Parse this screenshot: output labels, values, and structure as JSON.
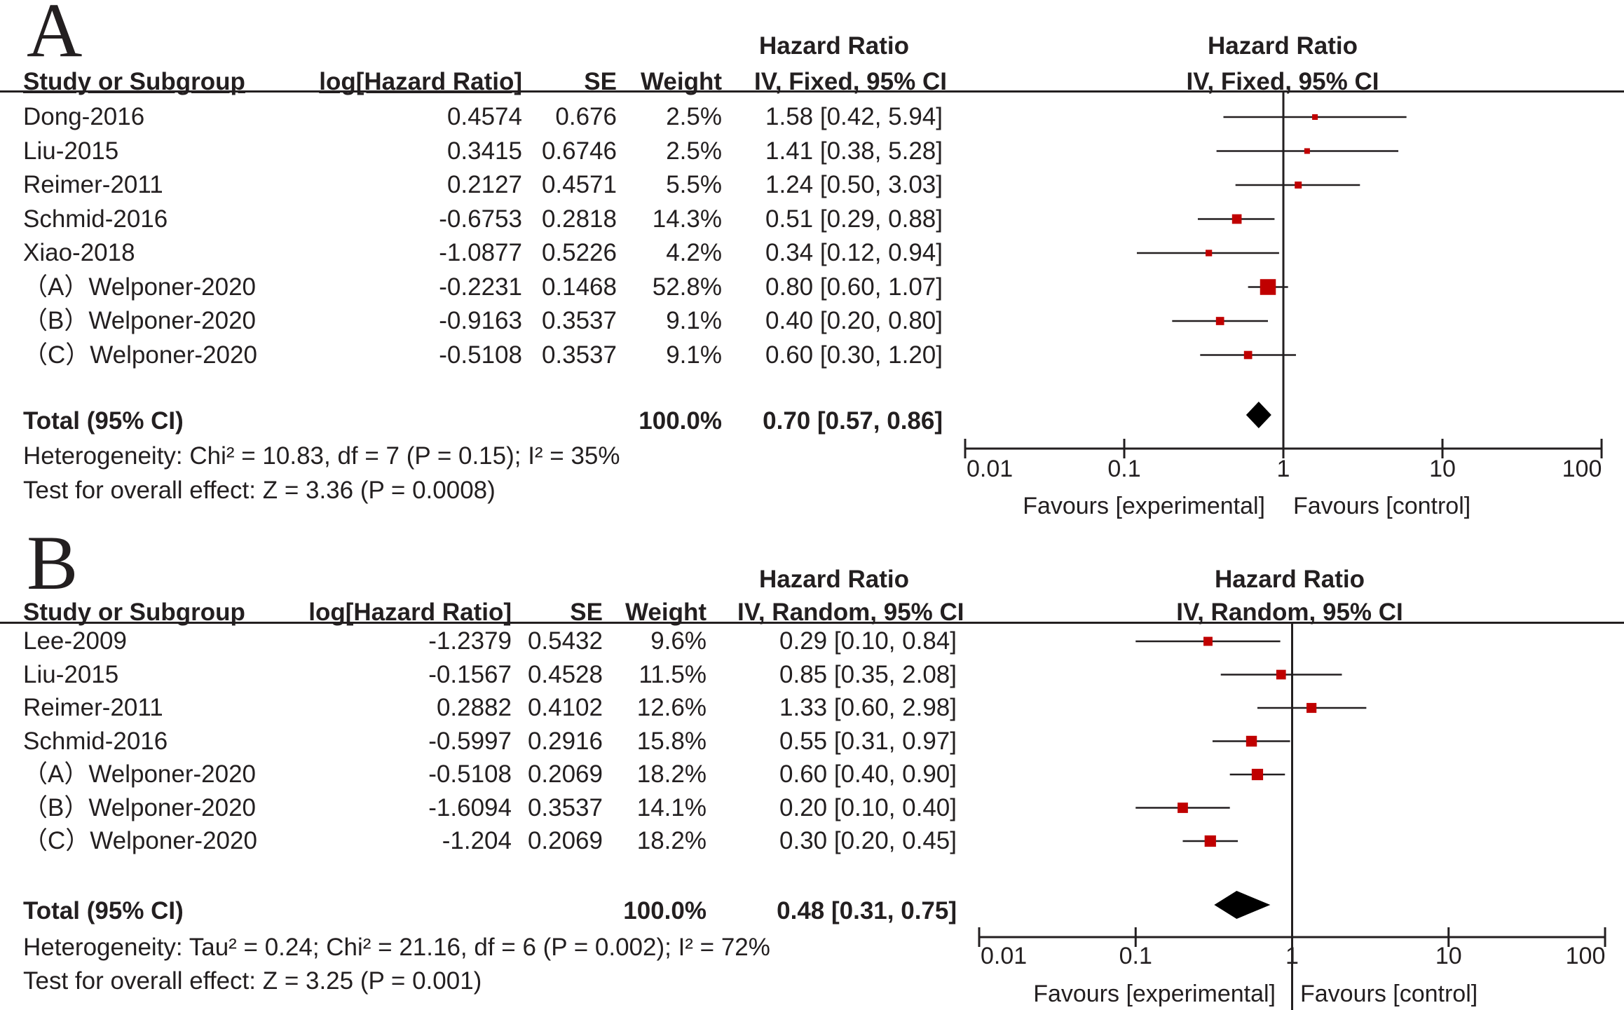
{
  "chart_data": [
    {
      "type": "forest",
      "panel_label": "A",
      "scale": "log",
      "xlim": [
        0.01,
        100
      ],
      "ticks": [
        "0.01",
        "0.1",
        "1",
        "10",
        "100"
      ],
      "tick_values": [
        0.01,
        0.1,
        1,
        10,
        100
      ],
      "headers": {
        "study": "Study or Subgroup",
        "loghr": "log[Hazard Ratio]",
        "se": "SE",
        "weight": "Weight",
        "hr_title": "Hazard Ratio",
        "hr_method": "IV, Fixed, 95% CI",
        "plot_title": "Hazard Ratio",
        "plot_method": "IV, Fixed, 95% CI"
      },
      "studies": [
        {
          "name": "Dong-2016",
          "loghr": "0.4574",
          "se": "0.676",
          "weight": "2.5%",
          "ci_text": "1.58 [0.42, 5.94]",
          "hr": 1.58,
          "lo": 0.42,
          "hi": 5.94,
          "w": 2.5
        },
        {
          "name": "Liu-2015",
          "loghr": "0.3415",
          "se": "0.6746",
          "weight": "2.5%",
          "ci_text": "1.41 [0.38, 5.28]",
          "hr": 1.41,
          "lo": 0.38,
          "hi": 5.28,
          "w": 2.5
        },
        {
          "name": "Reimer-2011",
          "loghr": "0.2127",
          "se": "0.4571",
          "weight": "5.5%",
          "ci_text": "1.24 [0.50, 3.03]",
          "hr": 1.24,
          "lo": 0.5,
          "hi": 3.03,
          "w": 5.5
        },
        {
          "name": "Schmid-2016",
          "loghr": "-0.6753",
          "se": "0.2818",
          "weight": "14.3%",
          "ci_text": "0.51 [0.29, 0.88]",
          "hr": 0.51,
          "lo": 0.29,
          "hi": 0.88,
          "w": 14.3
        },
        {
          "name": "Xiao-2018",
          "loghr": "-1.0877",
          "se": "0.5226",
          "weight": "4.2%",
          "ci_text": "0.34 [0.12, 0.94]",
          "hr": 0.34,
          "lo": 0.12,
          "hi": 0.94,
          "w": 4.2
        },
        {
          "name": "（A）Welponer-2020",
          "loghr": "-0.2231",
          "se": "0.1468",
          "weight": "52.8%",
          "ci_text": "0.80 [0.60, 1.07]",
          "hr": 0.8,
          "lo": 0.6,
          "hi": 1.07,
          "w": 52.8
        },
        {
          "name": "（B）Welponer-2020",
          "loghr": "-0.9163",
          "se": "0.3537",
          "weight": "9.1%",
          "ci_text": "0.40 [0.20, 0.80]",
          "hr": 0.4,
          "lo": 0.2,
          "hi": 0.8,
          "w": 9.1
        },
        {
          "name": "（C）Welponer-2020",
          "loghr": "-0.5108",
          "se": "0.3537",
          "weight": "9.1%",
          "ci_text": "0.60 [0.30, 1.20]",
          "hr": 0.6,
          "lo": 0.3,
          "hi": 1.2,
          "w": 9.1
        }
      ],
      "total": {
        "label": "Total (95% CI)",
        "weight": "100.0%",
        "ci_text": "0.70 [0.57, 0.86]",
        "hr": 0.7,
        "lo": 0.57,
        "hi": 0.86
      },
      "heterogeneity": "Heterogeneity: Chi² = 10.83, df = 7 (P = 0.15); I² = 35%",
      "overall_effect": "Test for overall effect: Z = 3.36 (P = 0.0008)",
      "favours_left": "Favours [experimental]",
      "favours_right": "Favours [control]",
      "colors": {
        "box": "#c00000",
        "diamond": "#000000",
        "line": "#231f20"
      }
    },
    {
      "type": "forest",
      "panel_label": "B",
      "scale": "log",
      "xlim": [
        0.01,
        100
      ],
      "ticks": [
        "0.01",
        "0.1",
        "1",
        "10",
        "100"
      ],
      "tick_values": [
        0.01,
        0.1,
        1,
        10,
        100
      ],
      "headers": {
        "study": "Study or Subgroup",
        "loghr": "log[Hazard Ratio]",
        "se": "SE",
        "weight": "Weight",
        "hr_title": "Hazard Ratio",
        "hr_method": "IV, Random, 95% CI",
        "plot_title": "Hazard Ratio",
        "plot_method": "IV, Random, 95% CI"
      },
      "studies": [
        {
          "name": "Lee-2009",
          "loghr": "-1.2379",
          "se": "0.5432",
          "weight": "9.6%",
          "ci_text": "0.29 [0.10, 0.84]",
          "hr": 0.29,
          "lo": 0.1,
          "hi": 0.84,
          "w": 9.6
        },
        {
          "name": "Liu-2015",
          "loghr": "-0.1567",
          "se": "0.4528",
          "weight": "11.5%",
          "ci_text": "0.85 [0.35, 2.08]",
          "hr": 0.85,
          "lo": 0.35,
          "hi": 2.08,
          "w": 11.5
        },
        {
          "name": "Reimer-2011",
          "loghr": "0.2882",
          "se": "0.4102",
          "weight": "12.6%",
          "ci_text": "1.33 [0.60, 2.98]",
          "hr": 1.33,
          "lo": 0.6,
          "hi": 2.98,
          "w": 12.6
        },
        {
          "name": "Schmid-2016",
          "loghr": "-0.5997",
          "se": "0.2916",
          "weight": "15.8%",
          "ci_text": "0.55 [0.31, 0.97]",
          "hr": 0.55,
          "lo": 0.31,
          "hi": 0.97,
          "w": 15.8
        },
        {
          "name": "（A）Welponer-2020",
          "loghr": "-0.5108",
          "se": "0.2069",
          "weight": "18.2%",
          "ci_text": "0.60 [0.40, 0.90]",
          "hr": 0.6,
          "lo": 0.4,
          "hi": 0.9,
          "w": 18.2
        },
        {
          "name": "（B）Welponer-2020",
          "loghr": "-1.6094",
          "se": "0.3537",
          "weight": "14.1%",
          "ci_text": "0.20 [0.10, 0.40]",
          "hr": 0.2,
          "lo": 0.1,
          "hi": 0.4,
          "w": 14.1
        },
        {
          "name": "（C）Welponer-2020",
          "loghr": "-1.204",
          "se": "0.2069",
          "weight": "18.2%",
          "ci_text": "0.30 [0.20, 0.45]",
          "hr": 0.3,
          "lo": 0.2,
          "hi": 0.45,
          "w": 18.2
        }
      ],
      "total": {
        "label": "Total (95% CI)",
        "weight": "100.0%",
        "ci_text": "0.48 [0.31, 0.75]",
        "hr": 0.48,
        "lo": 0.31,
        "hi": 0.75
      },
      "heterogeneity": "Heterogeneity: Tau² = 0.24; Chi² = 21.16, df = 6 (P = 0.002); I² = 72%",
      "overall_effect": "Test for overall effect: Z = 3.25 (P = 0.001)",
      "favours_left": "Favours [experimental]",
      "favours_right": "Favours [control]",
      "colors": {
        "box": "#c00000",
        "diamond": "#000000",
        "line": "#231f20"
      }
    }
  ]
}
